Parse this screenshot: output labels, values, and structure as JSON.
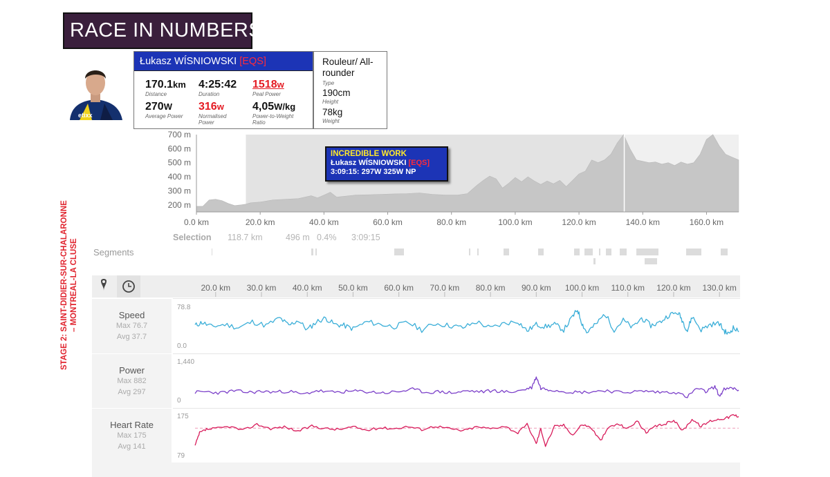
{
  "header": {
    "title": "RACE IN NUMBERS"
  },
  "rider": {
    "name": "Łukasz WÍSNIOWSKI",
    "team": "[EQS]",
    "stats": [
      {
        "value": "170.1",
        "unit": "km",
        "label": "Distance"
      },
      {
        "value": "4:25:42",
        "unit": "",
        "label": "Duration"
      },
      {
        "value": "1518",
        "unit": "w",
        "label": "Peal Power"
      },
      {
        "value": "270",
        "unit": "W",
        "label": "Average Power"
      },
      {
        "value": "316",
        "unit": "w",
        "label": "Normalised Power"
      },
      {
        "value": "4,05",
        "unit": "W/kg",
        "label": "Power-to-Weight Ratio"
      }
    ],
    "type_value": "Rouleur/ All-rounder",
    "type_label": "Type",
    "height_value": "190cm",
    "height_label": "Height",
    "weight_value": "78kg",
    "weight_label": "Weight"
  },
  "stage": {
    "text": "STAGE 2: SAINT-DIDIER-SUR-CHALARONNE – MONTREAL-LA CLUSE"
  },
  "tooltip": {
    "heading": "INCREDIBLE WORK",
    "rider": "Łukasz WÍSNIOWSKI",
    "team": "[EQS]",
    "detail": "3:09:15: 297W 325W NP"
  },
  "selection": {
    "label": "Selection",
    "distance": "118.7 km",
    "elevation": "496 m",
    "grade": "0.4%",
    "time": "3:09:15"
  },
  "segments": {
    "label": "Segments"
  },
  "toolbar": {
    "icons": [
      "map-pin-icon",
      "clock-icon"
    ]
  },
  "colors": {
    "title_bg": "#3a1f3c",
    "card_header": "#1c34b6",
    "accent_red": "#e41b23",
    "speed": "#3aaed8",
    "power": "#7b3fc9",
    "heart_rate": "#d81b5a",
    "elevation_fill": "#c6c6c6",
    "selection_bg": "#e3e3e3"
  },
  "chart_data": [
    {
      "type": "area",
      "name": "elevation",
      "x_unit": "km",
      "x_ticks": [
        "0.0 km",
        "20.0 km",
        "40.0 km",
        "60.0 km",
        "80.0 km",
        "100.0 km",
        "120.0 km",
        "140.0 km",
        "160.0 km"
      ],
      "y_ticks": [
        "200 m",
        "300 m",
        "400 m",
        "500 m",
        "600 m",
        "700 m"
      ],
      "xlim": [
        0,
        170.1
      ],
      "ylim": [
        150,
        700
      ],
      "x": [
        0,
        2,
        4,
        6,
        8,
        10,
        12,
        14,
        15.5,
        17,
        20,
        24,
        28,
        32,
        36,
        38,
        40,
        42,
        44,
        46,
        50,
        54,
        58,
        62,
        66,
        70,
        74,
        78,
        82,
        85,
        88,
        90,
        92,
        94,
        96,
        98,
        100,
        102,
        104,
        106,
        108,
        110,
        112,
        114,
        116,
        118,
        120,
        122,
        124,
        126,
        128,
        130,
        132,
        134,
        136,
        138,
        140,
        142,
        144,
        146,
        148,
        150,
        152,
        154,
        156,
        158,
        160,
        162,
        164,
        166,
        168,
        170.1
      ],
      "y": [
        190,
        190,
        235,
        240,
        230,
        210,
        195,
        200,
        205,
        215,
        220,
        235,
        240,
        245,
        265,
        250,
        270,
        290,
        255,
        260,
        270,
        272,
        275,
        278,
        280,
        285,
        275,
        270,
        270,
        280,
        340,
        375,
        405,
        385,
        320,
        355,
        395,
        365,
        400,
        370,
        345,
        370,
        350,
        375,
        330,
        375,
        420,
        440,
        520,
        500,
        520,
        560,
        640,
        700,
        600,
        520,
        510,
        500,
        505,
        490,
        500,
        480,
        505,
        490,
        500,
        560,
        665,
        700,
        620,
        560,
        540,
        520
      ],
      "selection_km": [
        15.5,
        134.2
      ]
    },
    {
      "type": "line",
      "name": "Speed",
      "max": "Max 76.7",
      "avg": "Avg 37.7",
      "ymax_label": "78.8",
      "ymin_label": "0.0",
      "ylim": [
        0,
        78.8
      ],
      "x_ticks": [
        "20.0 km",
        "30.0 km",
        "40.0 km",
        "50.0 km",
        "60.0 km",
        "70.0 km",
        "80.0 km",
        "90.0 km",
        "100.0 km",
        "110.0 km",
        "120.0 km",
        "130.0 km"
      ],
      "x_range_km": [
        15.5,
        134.2
      ],
      "x": [
        15.5,
        17,
        19,
        22,
        25,
        28,
        31,
        34,
        36,
        38,
        40,
        42,
        44,
        46,
        48,
        50,
        53,
        56,
        59,
        62,
        65,
        68,
        71,
        74,
        77,
        80,
        83,
        86,
        88,
        90,
        92,
        94,
        96,
        98,
        99,
        100,
        101,
        103,
        105,
        107,
        109,
        111,
        113,
        115,
        117,
        119,
        121,
        122,
        123,
        124,
        126,
        128,
        130,
        131,
        132,
        133,
        134.2
      ],
      "y": [
        38,
        44,
        36,
        40,
        34,
        45,
        38,
        52,
        38,
        48,
        30,
        45,
        52,
        40,
        38,
        32,
        45,
        40,
        36,
        44,
        30,
        42,
        38,
        34,
        45,
        33,
        42,
        46,
        28,
        40,
        36,
        40,
        30,
        55,
        68,
        42,
        25,
        40,
        60,
        30,
        48,
        34,
        52,
        38,
        44,
        58,
        62,
        46,
        28,
        55,
        30,
        40,
        42,
        28,
        22,
        34,
        26
      ]
    },
    {
      "type": "line",
      "name": "Power",
      "max": "Max 882",
      "avg": "Avg 297",
      "ymax_label": "1,440",
      "ymin_label": "0",
      "ylim": [
        0,
        1440
      ],
      "x_range_km": [
        15.5,
        134.2
      ],
      "x": [
        15.5,
        18,
        21,
        24,
        27,
        30,
        33,
        36,
        39,
        42,
        45,
        48,
        51,
        54,
        57,
        60,
        63,
        66,
        69,
        72,
        75,
        78,
        81,
        84,
        87,
        89,
        90,
        91,
        93,
        96,
        99,
        102,
        105,
        108,
        111,
        114,
        117,
        120,
        123,
        125,
        127,
        129,
        130,
        131,
        133,
        134.2
      ],
      "y": [
        280,
        300,
        260,
        330,
        280,
        310,
        290,
        320,
        200,
        340,
        280,
        300,
        320,
        290,
        260,
        310,
        380,
        280,
        300,
        260,
        330,
        300,
        340,
        280,
        360,
        450,
        820,
        420,
        380,
        320,
        280,
        300,
        350,
        280,
        300,
        320,
        280,
        300,
        120,
        420,
        300,
        480,
        140,
        380,
        420,
        360
      ]
    },
    {
      "type": "line",
      "name": "Heart Rate",
      "max": "Max 175",
      "avg": "Avg 141",
      "ymax_label": "175",
      "ymin_label": "79",
      "ylim": [
        79,
        175
      ],
      "x_range_km": [
        15.5,
        134.2
      ],
      "x": [
        15.5,
        16.5,
        18,
        20,
        23,
        26,
        29,
        32,
        35,
        38,
        41,
        44,
        47,
        50,
        53,
        56,
        59,
        62,
        65,
        68,
        71,
        74,
        77,
        80,
        83,
        86,
        88,
        90,
        91,
        92,
        94,
        96,
        98,
        100,
        102,
        104,
        106,
        108,
        110,
        112,
        114,
        116,
        118,
        120,
        122,
        124,
        126,
        128,
        130,
        132,
        133,
        134.2
      ],
      "y": [
        100,
        130,
        138,
        140,
        145,
        136,
        150,
        140,
        144,
        134,
        146,
        140,
        138,
        144,
        136,
        142,
        140,
        145,
        138,
        146,
        140,
        135,
        144,
        140,
        146,
        130,
        150,
        105,
        140,
        100,
        145,
        148,
        125,
        150,
        142,
        112,
        145,
        150,
        140,
        158,
        130,
        145,
        150,
        160,
        135,
        162,
        145,
        158,
        162,
        166,
        172,
        168
      ]
    }
  ]
}
